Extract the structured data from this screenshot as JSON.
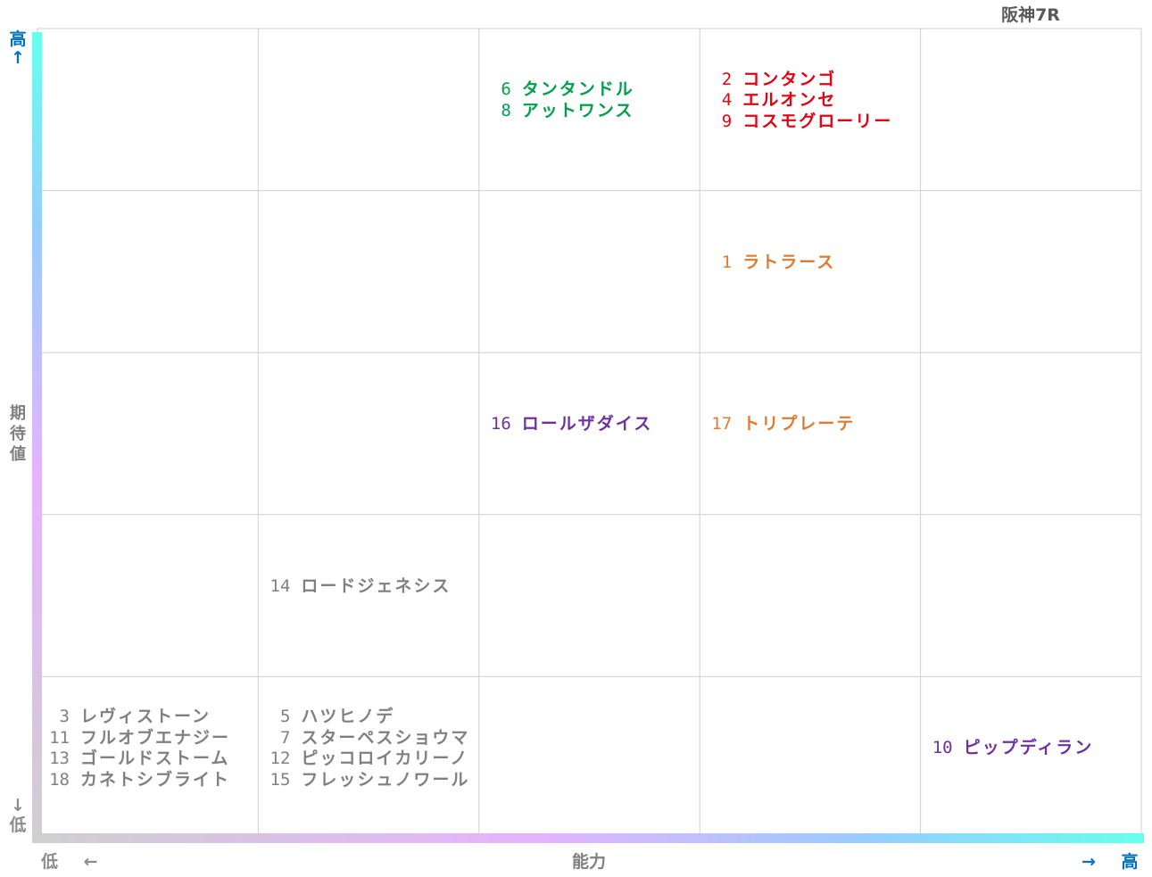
{
  "chart_data": {
    "type": "table",
    "title": "阪神7R",
    "xlabel": "能力",
    "ylabel": "期待値",
    "x_low": "低",
    "x_high": "高",
    "y_low": "低",
    "y_high": "高",
    "x_arrow_low": "←",
    "x_arrow_high": "→",
    "y_arrow_up": "↑",
    "y_arrow_down": "↓",
    "grid": true,
    "columns": 5,
    "rows": 5,
    "cells": [
      {
        "col": 3,
        "row": 5,
        "color": "#00a04a",
        "horses": [
          {
            "num": "6",
            "name": "タンタンドル"
          },
          {
            "num": "8",
            "name": "アットワンス"
          }
        ]
      },
      {
        "col": 4,
        "row": 5,
        "color": "#e60012",
        "horses": [
          {
            "num": "2",
            "name": "コンタンゴ"
          },
          {
            "num": "4",
            "name": "エルオンセ"
          },
          {
            "num": "9",
            "name": "コスモグローリー"
          }
        ]
      },
      {
        "col": 4,
        "row": 4,
        "color": "#e07a32",
        "horses": [
          {
            "num": "1",
            "name": "ラトラース"
          }
        ]
      },
      {
        "col": 3,
        "row": 3,
        "color": "#7030a0",
        "horses": [
          {
            "num": "16",
            "name": "ロールザダイス"
          }
        ]
      },
      {
        "col": 4,
        "row": 3,
        "color": "#e07a32",
        "horses": [
          {
            "num": "17",
            "name": "トリプレーテ"
          }
        ]
      },
      {
        "col": 2,
        "row": 2,
        "color": "#808080",
        "horses": [
          {
            "num": "14",
            "name": "ロードジェネシス"
          }
        ]
      },
      {
        "col": 1,
        "row": 1,
        "color": "#808080",
        "horses": [
          {
            "num": "3",
            "name": "レヴィストーン"
          },
          {
            "num": "11",
            "name": "フルオブエナジー"
          },
          {
            "num": "13",
            "name": "ゴールドストーム"
          },
          {
            "num": "18",
            "name": "カネトシブライト"
          }
        ]
      },
      {
        "col": 2,
        "row": 1,
        "color": "#808080",
        "horses": [
          {
            "num": "5",
            "name": "ハツヒノデ"
          },
          {
            "num": "7",
            "name": "スターペスショウマ"
          },
          {
            "num": "12",
            "name": "ピッコロイカリーノ"
          },
          {
            "num": "15",
            "name": "フレッシュノワール"
          }
        ]
      },
      {
        "col": 5,
        "row": 1,
        "color": "#7030a0",
        "horses": [
          {
            "num": "10",
            "name": "ピップディラン"
          }
        ]
      }
    ]
  },
  "colors": {
    "axis_high": "#0070c0",
    "axis_low": "#8c8c8c",
    "grid": "#cfcfcf",
    "gradient_start": "#cfcfcf",
    "gradient_mid": "#e6b3ff",
    "gradient_end": "#66ffee"
  }
}
